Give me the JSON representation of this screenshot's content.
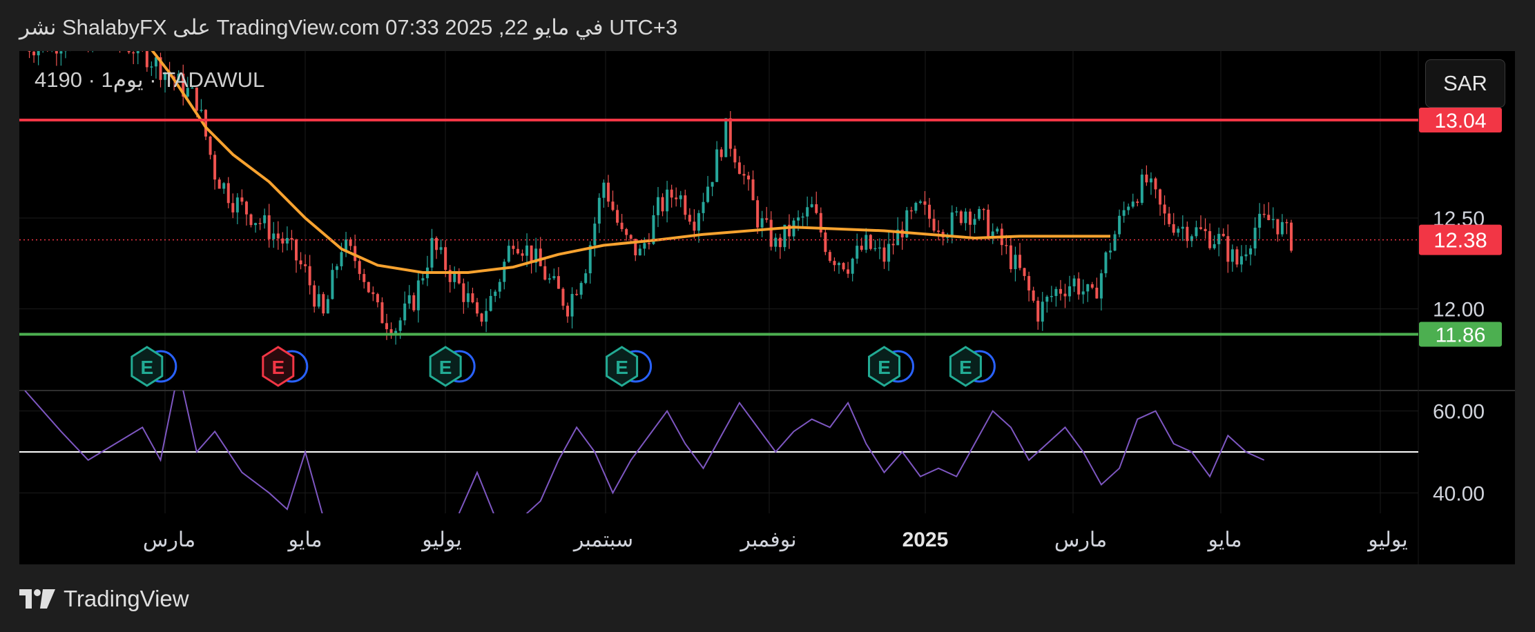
{
  "header": {
    "publish_line": "نشر ShalabyFX على TradingView.com 07:33 2025 ,22 في مايو UTC+3"
  },
  "symbol": {
    "label": "4190 · 1يوم · TADAWUL"
  },
  "currency": {
    "label": "SAR"
  },
  "footer": {
    "brand": "TradingView"
  },
  "colors": {
    "up": "#26a69a",
    "down": "#ef5350",
    "ma": "#f7a22f",
    "resistance": "#f23645",
    "support": "#4caf50",
    "rsi": "#7e57c2",
    "last_price": "#f23645"
  },
  "chart_data": {
    "type": "candlestick",
    "x_ticks": [
      "مارس",
      "مايو",
      "يوليو",
      "سبتمبر",
      "نوفمبر",
      "2025",
      "مارس",
      "مايو",
      "يوليو"
    ],
    "price_axis": {
      "ticks": [
        "12.50",
        "12.00"
      ],
      "ylim": [
        11.55,
        13.42
      ]
    },
    "horizontal_levels": [
      {
        "value": 13.04,
        "label": "13.04",
        "color": "#f23645"
      },
      {
        "value": 11.86,
        "label": "11.86",
        "color": "#4caf50"
      }
    ],
    "last_price": {
      "value": 12.38,
      "label": "12.38"
    },
    "moving_average_path": [
      [
        0,
        13.72
      ],
      [
        22,
        13.62
      ],
      [
        32,
        13.3
      ],
      [
        40,
        13.0
      ],
      [
        46,
        12.85
      ],
      [
        54,
        12.7
      ],
      [
        62,
        12.5
      ],
      [
        70,
        12.33
      ],
      [
        78,
        12.24
      ],
      [
        88,
        12.2
      ],
      [
        98,
        12.2
      ],
      [
        108,
        12.23
      ],
      [
        118,
        12.3
      ],
      [
        128,
        12.35
      ],
      [
        140,
        12.38
      ],
      [
        150,
        12.41
      ],
      [
        160,
        12.43
      ],
      [
        170,
        12.45
      ],
      [
        180,
        12.44
      ],
      [
        190,
        12.43
      ],
      [
        200,
        12.41
      ],
      [
        210,
        12.39
      ],
      [
        220,
        12.4
      ],
      [
        230,
        12.4
      ],
      [
        240,
        12.4
      ]
    ],
    "events": [
      {
        "index": 27,
        "type": "E",
        "sentiment": "positive",
        "dividend": true
      },
      {
        "index": 56,
        "type": "E",
        "sentiment": "negative",
        "dividend": true
      },
      {
        "index": 93,
        "type": "E",
        "sentiment": "positive",
        "dividend": true
      },
      {
        "index": 132,
        "type": "E",
        "sentiment": "positive",
        "dividend": true
      },
      {
        "index": 190,
        "type": "E",
        "sentiment": "positive",
        "dividend": true
      },
      {
        "index": 208,
        "type": "E",
        "sentiment": "positive",
        "dividend": true
      }
    ],
    "candle_close_path": [
      [
        0,
        13.45
      ],
      [
        18,
        13.5
      ],
      [
        26,
        13.42
      ],
      [
        38,
        13.15
      ],
      [
        42,
        12.75
      ],
      [
        46,
        12.6
      ],
      [
        52,
        12.48
      ],
      [
        58,
        12.35
      ],
      [
        62,
        12.2
      ],
      [
        66,
        11.95
      ],
      [
        70,
        12.35
      ],
      [
        74,
        12.25
      ],
      [
        78,
        11.98
      ],
      [
        82,
        11.9
      ],
      [
        86,
        12.05
      ],
      [
        90,
        12.35
      ],
      [
        94,
        12.2
      ],
      [
        98,
        12.05
      ],
      [
        100,
        11.92
      ],
      [
        104,
        12.1
      ],
      [
        108,
        12.4
      ],
      [
        112,
        12.3
      ],
      [
        116,
        12.15
      ],
      [
        120,
        12.02
      ],
      [
        124,
        12.25
      ],
      [
        128,
        12.7
      ],
      [
        132,
        12.4
      ],
      [
        136,
        12.3
      ],
      [
        140,
        12.55
      ],
      [
        144,
        12.65
      ],
      [
        148,
        12.5
      ],
      [
        152,
        12.75
      ],
      [
        155,
        12.98
      ],
      [
        158,
        12.8
      ],
      [
        162,
        12.5
      ],
      [
        166,
        12.35
      ],
      [
        170,
        12.45
      ],
      [
        174,
        12.55
      ],
      [
        178,
        12.3
      ],
      [
        182,
        12.25
      ],
      [
        186,
        12.35
      ],
      [
        190,
        12.28
      ],
      [
        194,
        12.45
      ],
      [
        198,
        12.55
      ],
      [
        200,
        12.5
      ],
      [
        204,
        12.45
      ],
      [
        208,
        12.55
      ],
      [
        212,
        12.48
      ],
      [
        216,
        12.35
      ],
      [
        220,
        12.2
      ],
      [
        224,
        11.98
      ],
      [
        228,
        12.1
      ],
      [
        232,
        12.15
      ],
      [
        236,
        12.05
      ],
      [
        240,
        12.35
      ],
      [
        244,
        12.6
      ],
      [
        248,
        12.7
      ],
      [
        252,
        12.5
      ],
      [
        256,
        12.45
      ],
      [
        260,
        12.42
      ],
      [
        264,
        12.38
      ],
      [
        268,
        12.25
      ],
      [
        272,
        12.45
      ],
      [
        276,
        12.5
      ],
      [
        280,
        12.38
      ]
    ],
    "rsi": {
      "ticks": [
        "60.00",
        "40.00"
      ],
      "ylim": [
        35,
        65
      ],
      "midline": 50,
      "path": [
        [
          0,
          65
        ],
        [
          8,
          55
        ],
        [
          14,
          48
        ],
        [
          20,
          52
        ],
        [
          26,
          56
        ],
        [
          30,
          48
        ],
        [
          34,
          70
        ],
        [
          38,
          50
        ],
        [
          42,
          55
        ],
        [
          48,
          45
        ],
        [
          54,
          40
        ],
        [
          58,
          36
        ],
        [
          62,
          50
        ],
        [
          66,
          34
        ],
        [
          null,
          null
        ],
        [
          96,
          35
        ],
        [
          100,
          45
        ],
        [
          104,
          34
        ],
        [
          null,
          null
        ],
        [
          110,
          34
        ],
        [
          114,
          38
        ],
        [
          118,
          48
        ],
        [
          122,
          56
        ],
        [
          126,
          50
        ],
        [
          130,
          40
        ],
        [
          134,
          48
        ],
        [
          138,
          54
        ],
        [
          142,
          60
        ],
        [
          146,
          52
        ],
        [
          150,
          46
        ],
        [
          154,
          54
        ],
        [
          158,
          62
        ],
        [
          162,
          56
        ],
        [
          166,
          50
        ],
        [
          170,
          55
        ],
        [
          174,
          58
        ],
        [
          178,
          56
        ],
        [
          182,
          62
        ],
        [
          186,
          52
        ],
        [
          190,
          45
        ],
        [
          194,
          50
        ],
        [
          198,
          44
        ],
        [
          202,
          46
        ],
        [
          206,
          44
        ],
        [
          210,
          52
        ],
        [
          214,
          60
        ],
        [
          218,
          56
        ],
        [
          222,
          48
        ],
        [
          226,
          52
        ],
        [
          230,
          56
        ],
        [
          234,
          50
        ],
        [
          238,
          42
        ],
        [
          242,
          46
        ],
        [
          246,
          58
        ],
        [
          250,
          60
        ],
        [
          254,
          52
        ],
        [
          258,
          50
        ],
        [
          262,
          44
        ],
        [
          266,
          54
        ],
        [
          270,
          50
        ],
        [
          274,
          48
        ]
      ]
    }
  }
}
